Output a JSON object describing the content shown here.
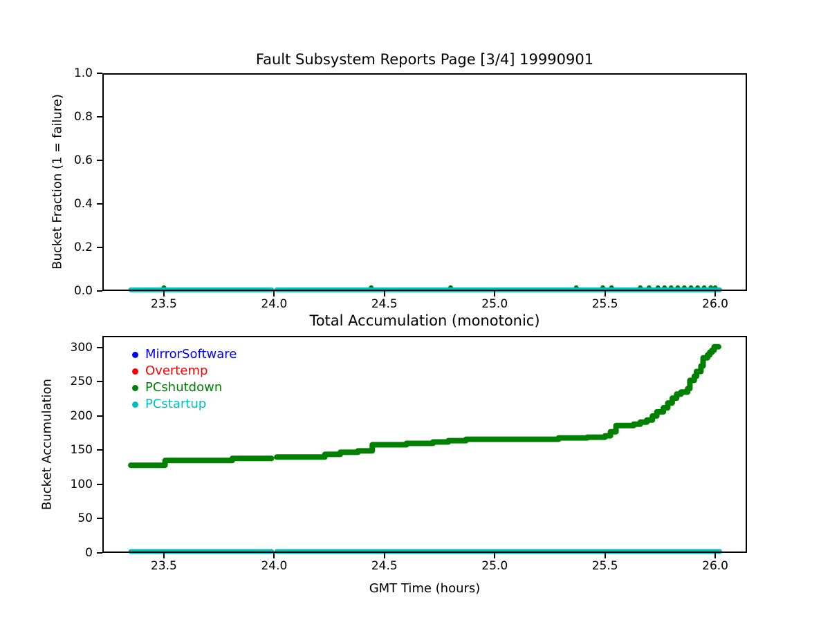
{
  "window": {
    "background": "#ffffff",
    "text_color": "#000000"
  },
  "chart_data": [
    {
      "id": "fault-fraction",
      "type": "line",
      "title": "Fault Subsystem Reports Page [3/4] 19990901",
      "xlabel": "",
      "ylabel": "Bucket Fraction (1 = failure)",
      "xlim": [
        23.221,
        26.144
      ],
      "ylim": [
        0.0,
        1.0
      ],
      "grid": false,
      "xticks": [
        23.5,
        24.0,
        24.5,
        25.0,
        25.5,
        26.0
      ],
      "xtick_labels": [
        "23.5",
        "24.0",
        "24.5",
        "25.0",
        "25.5",
        "26.0"
      ],
      "yticks": [
        0.0,
        0.2,
        0.4,
        0.6,
        0.8,
        1.0
      ],
      "ytick_labels": [
        "0.0",
        "0.2",
        "0.4",
        "0.6",
        "0.8",
        "1.0"
      ],
      "series": [
        {
          "name": "PCshutdown",
          "color": "#008000",
          "style": "dots",
          "marker_radius": 3.5,
          "y": 0.015,
          "x": [
            23.5,
            24.44,
            24.8,
            25.37,
            25.49,
            25.53,
            25.66,
            25.7,
            25.74,
            25.77,
            25.8,
            25.83,
            25.86,
            25.89,
            25.92,
            25.95,
            25.98,
            26.0
          ]
        },
        {
          "name": "PCstartup",
          "color": "#00bfbf",
          "style": "line",
          "linewidth": 7,
          "segments": [
            [
              [
                23.35,
                0.005
              ],
              [
                23.988,
                0.005
              ]
            ],
            [
              [
                24.012,
                0.005
              ],
              [
                26.02,
                0.005
              ]
            ]
          ]
        }
      ]
    },
    {
      "id": "total-accumulation",
      "type": "line",
      "title": "Total Accumulation (monotonic)",
      "xlabel": "GMT Time (hours)",
      "ylabel": "Bucket Accumulation",
      "xlim": [
        23.221,
        26.144
      ],
      "ylim": [
        0,
        317
      ],
      "grid": false,
      "xticks": [
        23.5,
        24.0,
        24.5,
        25.0,
        25.5,
        26.0
      ],
      "xtick_labels": [
        "23.5",
        "24.0",
        "24.5",
        "25.0",
        "25.5",
        "26.0"
      ],
      "yticks": [
        0,
        50,
        100,
        150,
        200,
        250,
        300
      ],
      "ytick_labels": [
        "0",
        "50",
        "100",
        "150",
        "200",
        "250",
        "300"
      ],
      "legend": {
        "location": "upper left",
        "items": [
          {
            "label": "MirrorSoftware",
            "color": "#0000ff"
          },
          {
            "label": "Overtemp",
            "color": "#ff0000"
          },
          {
            "label": "PCshutdown",
            "color": "#008000"
          },
          {
            "label": "PCstartup",
            "color": "#00bfbf"
          }
        ]
      },
      "series": [
        {
          "name": "PCshutdown",
          "color": "#008000",
          "style": "line",
          "linewidth": 8,
          "segments": [
            [
              [
                23.35,
                128
              ],
              [
                23.505,
                128
              ],
              [
                23.505,
                135
              ],
              [
                23.81,
                135
              ],
              [
                23.81,
                138
              ],
              [
                23.988,
                138
              ]
            ],
            [
              [
                24.012,
                140
              ],
              [
                24.23,
                140
              ],
              [
                24.23,
                144
              ],
              [
                24.3,
                144
              ],
              [
                24.3,
                147
              ],
              [
                24.38,
                147
              ],
              [
                24.38,
                149
              ],
              [
                24.445,
                149
              ],
              [
                24.445,
                158
              ],
              [
                24.6,
                158
              ],
              [
                24.6,
                160
              ],
              [
                24.72,
                160
              ],
              [
                24.72,
                162
              ],
              [
                24.79,
                162
              ],
              [
                24.79,
                164
              ],
              [
                24.87,
                164
              ],
              [
                24.87,
                166
              ],
              [
                25.29,
                166
              ],
              [
                25.29,
                168
              ],
              [
                25.42,
                168
              ],
              [
                25.42,
                169
              ],
              [
                25.5,
                169
              ],
              [
                25.5,
                171
              ],
              [
                25.525,
                171
              ],
              [
                25.525,
                177
              ],
              [
                25.55,
                177
              ],
              [
                25.55,
                186
              ],
              [
                25.63,
                186
              ],
              [
                25.63,
                188
              ],
              [
                25.66,
                188
              ],
              [
                25.66,
                191
              ],
              [
                25.69,
                191
              ],
              [
                25.69,
                194
              ],
              [
                25.715,
                194
              ],
              [
                25.715,
                200
              ],
              [
                25.735,
                200
              ],
              [
                25.735,
                206
              ],
              [
                25.765,
                206
              ],
              [
                25.765,
                212
              ],
              [
                25.785,
                212
              ],
              [
                25.785,
                219
              ],
              [
                25.805,
                219
              ],
              [
                25.805,
                226
              ],
              [
                25.825,
                226
              ],
              [
                25.825,
                232
              ],
              [
                25.845,
                232
              ],
              [
                25.845,
                235
              ],
              [
                25.875,
                235
              ],
              [
                25.875,
                240
              ],
              [
                25.885,
                240
              ],
              [
                25.885,
                252
              ],
              [
                25.905,
                252
              ],
              [
                25.905,
                258
              ],
              [
                25.915,
                258
              ],
              [
                25.915,
                265
              ],
              [
                25.935,
                265
              ],
              [
                25.935,
                273
              ],
              [
                25.945,
                273
              ],
              [
                25.945,
                285
              ],
              [
                25.965,
                285
              ],
              [
                25.965,
                289
              ],
              [
                25.975,
                289
              ],
              [
                25.975,
                293
              ],
              [
                25.985,
                293
              ],
              [
                25.985,
                296
              ],
              [
                25.995,
                296
              ],
              [
                25.995,
                301
              ],
              [
                26.015,
                301
              ]
            ]
          ]
        },
        {
          "name": "PCstartup",
          "color": "#00bfbf",
          "style": "line",
          "linewidth": 7,
          "segments": [
            [
              [
                23.35,
                2
              ],
              [
                23.988,
                2
              ]
            ],
            [
              [
                24.012,
                2
              ],
              [
                26.02,
                2
              ]
            ]
          ]
        }
      ]
    }
  ]
}
